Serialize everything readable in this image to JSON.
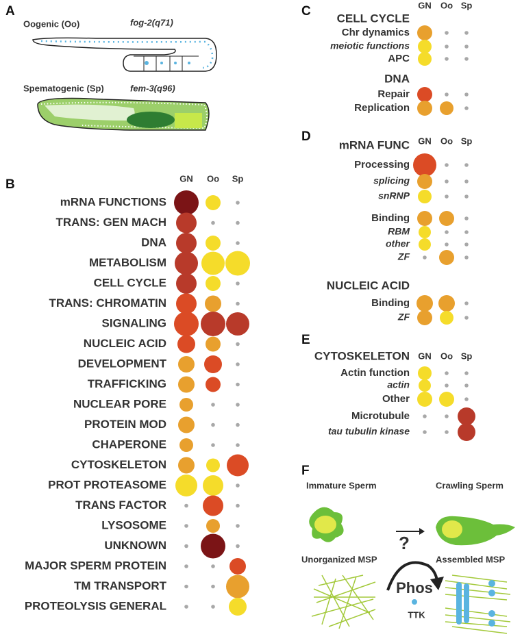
{
  "panel_a": {
    "letter": "A",
    "oogenic": "Oogenic (Oo)",
    "oogenic_strain": "fog-2(q71)",
    "spermatogenic": "Spematogenic (Sp)",
    "spermatogenic_strain": "fem-3(q96)"
  },
  "panel_b": {
    "letter": "B",
    "columns": [
      "GN",
      "Oo",
      "Sp"
    ],
    "rows": [
      "mRNA FUNCTIONS",
      "TRANS: GEN MACH",
      "DNA",
      "METABOLISM",
      "CELL CYCLE",
      "TRANS: CHROMATIN",
      "SIGNALING",
      "NUCLEIC ACID",
      "DEVELOPMENT",
      "TRAFFICKING",
      "NUCLEAR PORE",
      "PROTEIN MOD",
      "CHAPERONE",
      "CYTOSKELETON",
      "PROT PROTEASOME",
      "TRANS FACTOR",
      "LYSOSOME",
      "UNKNOWN",
      "MAJOR SPERM PROTEIN",
      "TM TRANSPORT",
      "PROTEOLYSIS GENERAL"
    ]
  },
  "panel_c": {
    "letter": "C",
    "columns": [
      "GN",
      "Oo",
      "Sp"
    ],
    "rows": [
      "CELL CYCLE",
      "Chr dynamics",
      "meiotic functions",
      "APC",
      "DNA",
      "Repair",
      "Replication"
    ]
  },
  "panel_d": {
    "letter": "D",
    "columns": [
      "GN",
      "Oo",
      "Sp"
    ],
    "rows": [
      "mRNA FUNC",
      "Processing",
      "splicing",
      "snRNP",
      "Binding",
      "RBM",
      "other",
      "ZF",
      "NUCLEIC ACID",
      "Binding",
      "ZF"
    ]
  },
  "panel_e": {
    "letter": "E",
    "columns": [
      "GN",
      "Oo",
      "Sp"
    ],
    "rows": [
      "CYTOSKELETON",
      "Actin function",
      "actin",
      "Other",
      "Microtubule",
      "tau tubulin kinase"
    ]
  },
  "panel_f": {
    "letter": "F",
    "immature": "Immature Sperm",
    "crawling": "Crawling Sperm",
    "question": "?",
    "unorganized": "Unorganized MSP",
    "assembled": "Assembled MSP",
    "phos": "Phos",
    "kinase": "TTK"
  }
}
